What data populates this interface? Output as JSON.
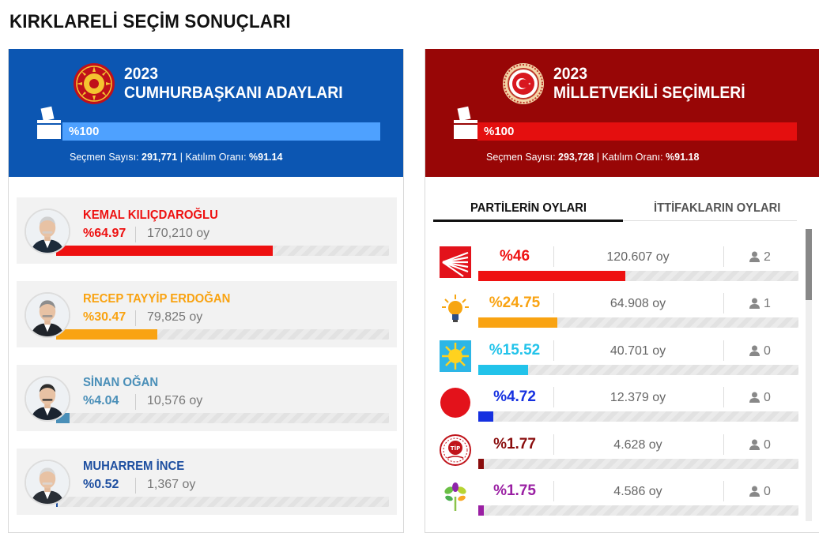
{
  "page": {
    "title": "KIRKLARELİ SEÇİM SONUÇLARI"
  },
  "presidential": {
    "year": "2023",
    "subtitle": "CUMHURBAŞKANI ADAYLARI",
    "progress_label": "%100",
    "progress": 1.0,
    "voters_label": "Seçmen Sayısı:",
    "voters": "291,771",
    "turnout_label": "Katılım Oranı:",
    "turnout": "%91.14",
    "candidates": [
      {
        "name": "KEMAL KILIÇDAROĞLU",
        "pct": "%64.97",
        "votes": "170,210 oy",
        "share": 0.6497,
        "color": "#ee1111",
        "icon": "candidate-photo"
      },
      {
        "name": "RECEP TAYYİP ERDOĞAN",
        "pct": "%30.47",
        "votes": "79,825 oy",
        "share": 0.3047,
        "color": "#f9a312",
        "icon": "candidate-photo"
      },
      {
        "name": "SİNAN OĞAN",
        "pct": "%4.04",
        "votes": "10,576 oy",
        "share": 0.0404,
        "color": "#4a8fb8",
        "icon": "candidate-photo"
      },
      {
        "name": "MUHARREM İNCE",
        "pct": "%0.52",
        "votes": "1,367 oy",
        "share": 0.0052,
        "color": "#1e4fa0",
        "icon": "candidate-photo"
      }
    ]
  },
  "parliament": {
    "year": "2023",
    "subtitle": "MİLLETVEKİLİ SEÇİMLERİ",
    "progress_label": "%100",
    "progress": 1.0,
    "voters_label": "Seçmen Sayısı:",
    "voters": "293,728",
    "turnout_label": "Katılım Oranı:",
    "turnout": "%91.18",
    "tabs": {
      "active": "PARTİLERİN OYLARI",
      "inactive": "İTTİFAKLARIN OYLARI"
    },
    "parties": [
      {
        "pct": "%46",
        "votes": "120.607 oy",
        "seats": "2",
        "share": 0.46,
        "color": "#ee1111",
        "icon": "chp-logo"
      },
      {
        "pct": "%24.75",
        "votes": "64.908 oy",
        "seats": "1",
        "share": 0.2475,
        "color": "#f9a312",
        "icon": "akp-logo"
      },
      {
        "pct": "%15.52",
        "votes": "40.701 oy",
        "seats": "0",
        "share": 0.1552,
        "color": "#22c3ea",
        "icon": "iyi-logo"
      },
      {
        "pct": "%4.72",
        "votes": "12.379 oy",
        "seats": "0",
        "share": 0.0472,
        "color": "#1530e0",
        "icon": "mhp-logo"
      },
      {
        "pct": "%1.77",
        "votes": "4.628 oy",
        "seats": "0",
        "share": 0.0177,
        "color": "#8a0d0d",
        "icon": "tip-logo"
      },
      {
        "pct": "%1.75",
        "votes": "4.586 oy",
        "seats": "0",
        "share": 0.0175,
        "color": "#9a1fa3",
        "icon": "yesil-sol-logo"
      }
    ]
  }
}
